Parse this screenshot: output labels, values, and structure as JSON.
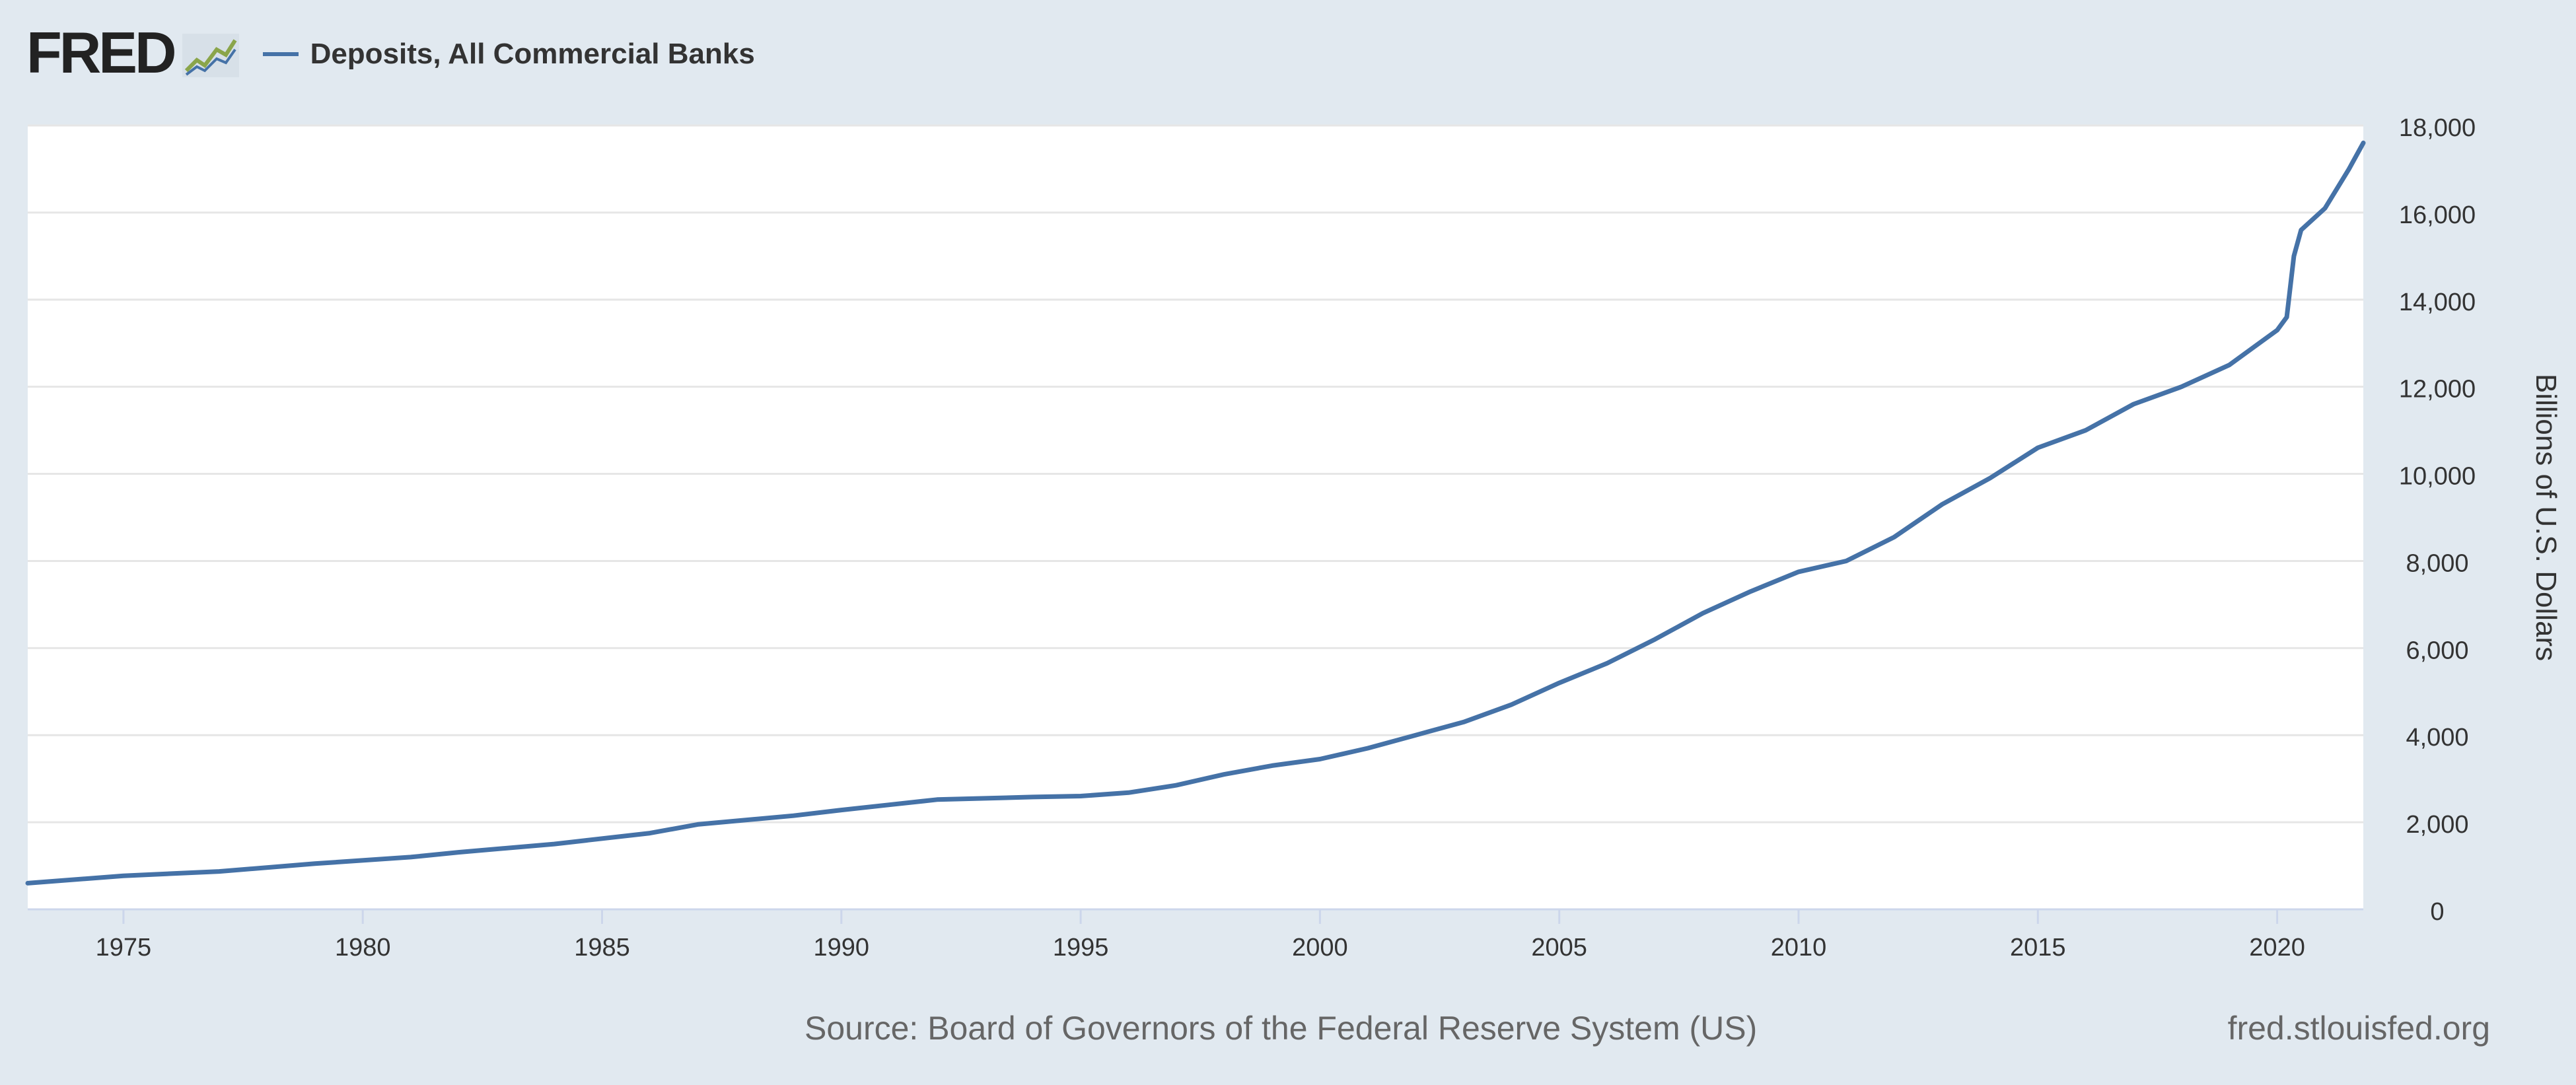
{
  "header": {
    "logo_text": "FRED",
    "legend_label": "Deposits, All Commercial Banks"
  },
  "footer": {
    "source": "Source: Board of Governors of the Federal Reserve System (US)",
    "site": "fred.stlouisfed.org"
  },
  "colors": {
    "series": "#4572a7",
    "background": "#e1e9f0",
    "plot_background": "#ffffff",
    "grid": "#e6e6e6"
  },
  "chart_data": {
    "type": "line",
    "title": "",
    "xlabel": "",
    "ylabel": "Billions of U.S. Dollars",
    "xlim": [
      1973.0,
      2021.8
    ],
    "ylim": [
      0,
      18000
    ],
    "x_ticks": [
      1975,
      1980,
      1985,
      1990,
      1995,
      2000,
      2005,
      2010,
      2015,
      2020
    ],
    "y_ticks": [
      0,
      2000,
      4000,
      6000,
      8000,
      10000,
      12000,
      14000,
      16000,
      18000
    ],
    "y_tick_labels": [
      "0",
      "2,000",
      "4,000",
      "6,000",
      "8,000",
      "10,000",
      "12,000",
      "14,000",
      "16,000",
      "18,000"
    ],
    "grid": true,
    "legend": "top-left",
    "series": [
      {
        "name": "Deposits, All Commercial Banks",
        "x": [
          1973.0,
          1975,
          1977,
          1979,
          1981,
          1982,
          1984,
          1986,
          1987,
          1989,
          1990,
          1991,
          1992,
          1994,
          1995,
          1996,
          1997,
          1998,
          1999,
          2000,
          2001,
          2002,
          2003,
          2004,
          2005,
          2006,
          2007,
          2008,
          2009,
          2010,
          2011,
          2012,
          2013,
          2014,
          2015,
          2016,
          2017,
          2018,
          2019,
          2020.0,
          2020.2,
          2020.35,
          2020.5,
          2021.0,
          2021.5,
          2021.8
        ],
        "y": [
          600,
          770,
          870,
          1050,
          1200,
          1310,
          1500,
          1750,
          1950,
          2150,
          2280,
          2400,
          2520,
          2580,
          2600,
          2680,
          2850,
          3100,
          3300,
          3450,
          3700,
          4000,
          4300,
          4700,
          5200,
          5650,
          6200,
          6800,
          7300,
          7750,
          8000,
          8550,
          9300,
          9900,
          10600,
          11000,
          11600,
          12000,
          12500,
          13300,
          13600,
          15000,
          15600,
          16100,
          17000,
          17600
        ]
      }
    ]
  }
}
